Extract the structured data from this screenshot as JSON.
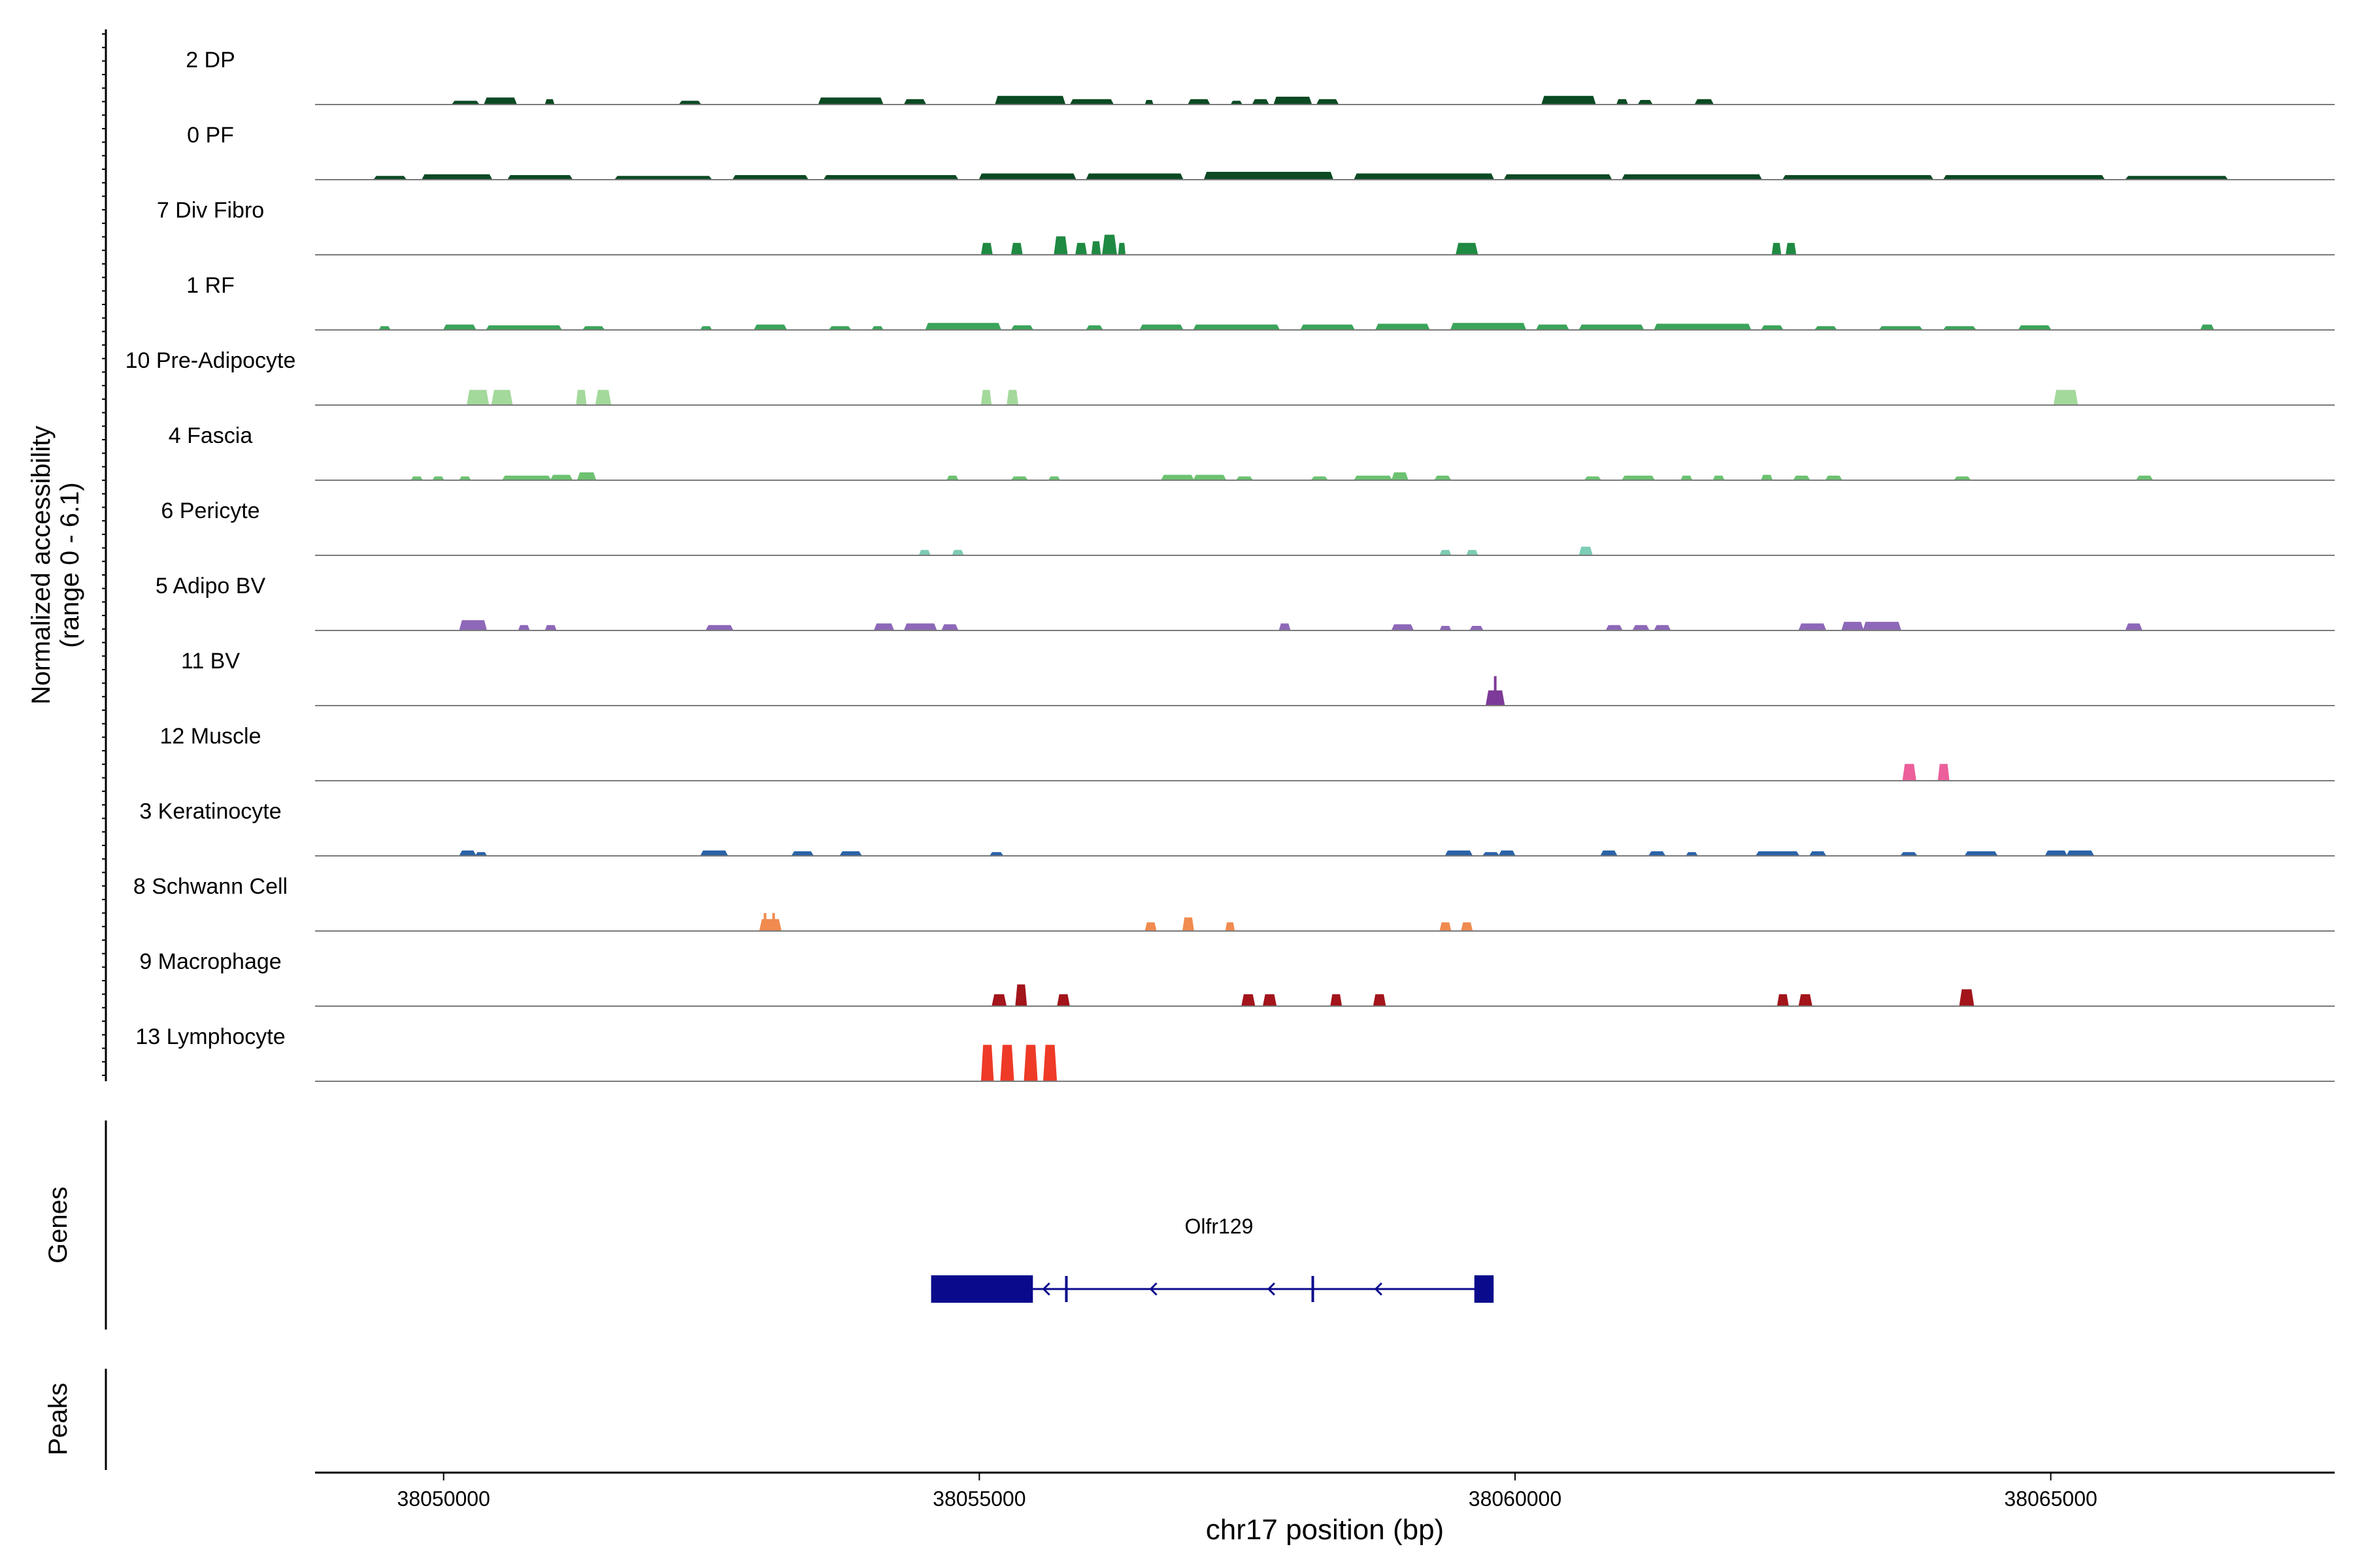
{
  "chart_data": {
    "type": "area",
    "title": "",
    "chrom": "chr17",
    "xlabel": "chr17 position (bp)",
    "ylabel": "Normalized accessibility",
    "ylabel_sub": "(range 0 - 6.1)",
    "xlim": [
      38048800,
      38067650
    ],
    "ylim": [
      0,
      6.1
    ],
    "x_ticks": [
      {
        "value": 38050000,
        "label": "38050000"
      },
      {
        "value": 38055000,
        "label": "38055000"
      },
      {
        "value": 38060000,
        "label": "38060000"
      },
      {
        "value": 38065000,
        "label": "38065000"
      }
    ],
    "tracks": [
      {
        "name": "2 DP",
        "color": "#0b4a23",
        "peaks": [
          [
            38050080,
            38050330,
            0.4
          ],
          [
            38050380,
            38050680,
            0.8
          ],
          [
            38050950,
            38051030,
            0.6
          ],
          [
            38052200,
            38052400,
            0.4
          ],
          [
            38053500,
            38054100,
            0.8
          ],
          [
            38054300,
            38054500,
            0.6
          ],
          [
            38055150,
            38055800,
            1.0
          ],
          [
            38055850,
            38056250,
            0.6
          ],
          [
            38056550,
            38056620,
            0.5
          ],
          [
            38056950,
            38057150,
            0.6
          ],
          [
            38057350,
            38057450,
            0.4
          ],
          [
            38057550,
            38057700,
            0.6
          ],
          [
            38057750,
            38058100,
            0.9
          ],
          [
            38058150,
            38058350,
            0.6
          ],
          [
            38060250,
            38060750,
            1.0
          ],
          [
            38060950,
            38061050,
            0.6
          ],
          [
            38061150,
            38061280,
            0.5
          ],
          [
            38061680,
            38061850,
            0.6
          ]
        ]
      },
      {
        "name": "0 PF",
        "color": "#0b4a23",
        "peaks": [
          [
            38049350,
            38049650,
            0.4
          ],
          [
            38049800,
            38050450,
            0.6
          ],
          [
            38050600,
            38051200,
            0.5
          ],
          [
            38051600,
            38052500,
            0.4
          ],
          [
            38052700,
            38053400,
            0.5
          ],
          [
            38053550,
            38054800,
            0.5
          ],
          [
            38055000,
            38055900,
            0.7
          ],
          [
            38056000,
            38056900,
            0.7
          ],
          [
            38057100,
            38058300,
            0.9
          ],
          [
            38058500,
            38059800,
            0.7
          ],
          [
            38059900,
            38060900,
            0.6
          ],
          [
            38061000,
            38062300,
            0.6
          ],
          [
            38062500,
            38063900,
            0.5
          ],
          [
            38064000,
            38065500,
            0.5
          ],
          [
            38065700,
            38066650,
            0.4
          ]
        ]
      },
      {
        "name": "7 Div Fibro",
        "color": "#1f8a42",
        "peaks": [
          [
            38055020,
            38055120,
            1.4
          ],
          [
            38055300,
            38055400,
            1.4
          ],
          [
            38055700,
            38055820,
            2.2
          ],
          [
            38055900,
            38056000,
            1.4
          ],
          [
            38056050,
            38056130,
            1.6
          ],
          [
            38056150,
            38056280,
            2.4
          ],
          [
            38056300,
            38056360,
            1.4
          ],
          [
            38059450,
            38059650,
            1.4
          ],
          [
            38062400,
            38062480,
            1.4
          ],
          [
            38062530,
            38062620,
            1.4
          ]
        ]
      },
      {
        "name": "1 RF",
        "color": "#3aa45a",
        "peaks": [
          [
            38049400,
            38049500,
            0.4
          ],
          [
            38050000,
            38050300,
            0.6
          ],
          [
            38050400,
            38051100,
            0.5
          ],
          [
            38051300,
            38051500,
            0.4
          ],
          [
            38052400,
            38052500,
            0.4
          ],
          [
            38052900,
            38053200,
            0.6
          ],
          [
            38053600,
            38053800,
            0.4
          ],
          [
            38054000,
            38054100,
            0.4
          ],
          [
            38054500,
            38055200,
            0.8
          ],
          [
            38055300,
            38055500,
            0.5
          ],
          [
            38056000,
            38056150,
            0.5
          ],
          [
            38056500,
            38056900,
            0.6
          ],
          [
            38057000,
            38057800,
            0.6
          ],
          [
            38058000,
            38058500,
            0.6
          ],
          [
            38058700,
            38059200,
            0.7
          ],
          [
            38059400,
            38060100,
            0.8
          ],
          [
            38060200,
            38060500,
            0.6
          ],
          [
            38060600,
            38061200,
            0.6
          ],
          [
            38061300,
            38062200,
            0.7
          ],
          [
            38062300,
            38062500,
            0.5
          ],
          [
            38062800,
            38063000,
            0.4
          ],
          [
            38063400,
            38063800,
            0.4
          ],
          [
            38064000,
            38064300,
            0.4
          ],
          [
            38064700,
            38065000,
            0.5
          ],
          [
            38066400,
            38066520,
            0.6
          ]
        ]
      },
      {
        "name": "10 Pre-Adipocyte",
        "color": "#a3d99b",
        "peaks": [
          [
            38050220,
            38050420,
            1.8
          ],
          [
            38050450,
            38050640,
            1.8
          ],
          [
            38051240,
            38051330,
            1.8
          ],
          [
            38051420,
            38051560,
            1.8
          ],
          [
            38055020,
            38055110,
            1.8
          ],
          [
            38055260,
            38055360,
            1.8
          ],
          [
            38065030,
            38065250,
            1.8
          ]
        ]
      },
      {
        "name": "4 Fascia",
        "color": "#6cc271",
        "peaks": [
          [
            38049700,
            38049800,
            0.4
          ],
          [
            38049900,
            38050000,
            0.4
          ],
          [
            38050150,
            38050250,
            0.4
          ],
          [
            38050550,
            38051000,
            0.5
          ],
          [
            38051000,
            38051200,
            0.6
          ],
          [
            38051250,
            38051420,
            0.9
          ],
          [
            38054700,
            38054800,
            0.5
          ],
          [
            38055300,
            38055450,
            0.4
          ],
          [
            38055650,
            38055750,
            0.4
          ],
          [
            38056700,
            38057000,
            0.6
          ],
          [
            38057000,
            38057300,
            0.6
          ],
          [
            38057400,
            38057550,
            0.4
          ],
          [
            38058100,
            38058250,
            0.4
          ],
          [
            38058500,
            38058850,
            0.5
          ],
          [
            38058850,
            38059000,
            0.9
          ],
          [
            38059250,
            38059400,
            0.5
          ],
          [
            38060650,
            38060800,
            0.4
          ],
          [
            38061000,
            38061300,
            0.5
          ],
          [
            38061550,
            38061650,
            0.5
          ],
          [
            38061850,
            38061950,
            0.5
          ],
          [
            38062300,
            38062400,
            0.6
          ],
          [
            38062600,
            38062750,
            0.5
          ],
          [
            38062900,
            38063050,
            0.5
          ],
          [
            38064100,
            38064250,
            0.4
          ],
          [
            38065800,
            38065950,
            0.5
          ]
        ]
      },
      {
        "name": "6 Pericyte",
        "color": "#7dccb5",
        "peaks": [
          [
            38054440,
            38054540,
            0.6
          ],
          [
            38054750,
            38054850,
            0.6
          ],
          [
            38059300,
            38059400,
            0.6
          ],
          [
            38059550,
            38059650,
            0.6
          ],
          [
            38060600,
            38060720,
            1.0
          ]
        ]
      },
      {
        "name": "5 Adipo BV",
        "color": "#8d68b8",
        "peaks": [
          [
            38050150,
            38050400,
            1.2
          ],
          [
            38050700,
            38050800,
            0.6
          ],
          [
            38050950,
            38051050,
            0.6
          ],
          [
            38052450,
            38052700,
            0.6
          ],
          [
            38054020,
            38054200,
            0.8
          ],
          [
            38054300,
            38054600,
            0.8
          ],
          [
            38054650,
            38054800,
            0.7
          ],
          [
            38057800,
            38057900,
            0.8
          ],
          [
            38058850,
            38059050,
            0.7
          ],
          [
            38059300,
            38059400,
            0.5
          ],
          [
            38059580,
            38059700,
            0.5
          ],
          [
            38060850,
            38061000,
            0.6
          ],
          [
            38061100,
            38061250,
            0.6
          ],
          [
            38061300,
            38061450,
            0.6
          ],
          [
            38062650,
            38062900,
            0.8
          ],
          [
            38063050,
            38063250,
            1.0
          ],
          [
            38063250,
            38063600,
            1.0
          ],
          [
            38065700,
            38065850,
            0.8
          ]
        ]
      },
      {
        "name": "11 BV",
        "color": "#7d3a98",
        "peaks": [
          [
            38059730,
            38059900,
            1.8
          ]
        ],
        "spikes": [
          [
            38059815,
            3.6
          ]
        ]
      },
      {
        "name": "12 Muscle",
        "color": "#ec5f9b",
        "peaks": [
          [
            38063620,
            38063740,
            2.0
          ],
          [
            38063950,
            38064050,
            2.0
          ]
        ]
      },
      {
        "name": "3 Keratinocyte",
        "color": "#2a63a8",
        "peaks": [
          [
            38050150,
            38050300,
            0.6
          ],
          [
            38050300,
            38050400,
            0.4
          ],
          [
            38052400,
            38052650,
            0.6
          ],
          [
            38053250,
            38053450,
            0.5
          ],
          [
            38053700,
            38053900,
            0.5
          ],
          [
            38055100,
            38055220,
            0.4
          ],
          [
            38059350,
            38059600,
            0.6
          ],
          [
            38059700,
            38059850,
            0.4
          ],
          [
            38059850,
            38060000,
            0.6
          ],
          [
            38060800,
            38060950,
            0.6
          ],
          [
            38061250,
            38061400,
            0.5
          ],
          [
            38061600,
            38061700,
            0.4
          ],
          [
            38062250,
            38062650,
            0.5
          ],
          [
            38062750,
            38062900,
            0.5
          ],
          [
            38063600,
            38063750,
            0.4
          ],
          [
            38064200,
            38064500,
            0.5
          ],
          [
            38064950,
            38065150,
            0.6
          ],
          [
            38065150,
            38065400,
            0.6
          ]
        ]
      },
      {
        "name": "8 Schwann Cell",
        "color": "#f08a4f",
        "peaks": [
          [
            38052950,
            38053150,
            1.4
          ],
          [
            38056550,
            38056650,
            1.0
          ],
          [
            38056900,
            38057000,
            1.6
          ],
          [
            38057300,
            38057380,
            1.0
          ],
          [
            38059300,
            38059400,
            1.0
          ],
          [
            38059500,
            38059600,
            1.0
          ]
        ],
        "spikes": [
          [
            38053000,
            2.2
          ],
          [
            38053080,
            2.2
          ]
        ]
      },
      {
        "name": "9 Macrophage",
        "color": "#a3141b",
        "peaks": [
          [
            38055120,
            38055250,
            1.4
          ],
          [
            38055340,
            38055440,
            2.6
          ],
          [
            38055730,
            38055840,
            1.4
          ],
          [
            38057450,
            38057570,
            1.4
          ],
          [
            38057650,
            38057770,
            1.4
          ],
          [
            38058280,
            38058380,
            1.4
          ],
          [
            38058680,
            38058790,
            1.4
          ],
          [
            38062450,
            38062550,
            1.4
          ],
          [
            38062650,
            38062770,
            1.4
          ],
          [
            38064150,
            38064280,
            2.0
          ]
        ]
      },
      {
        "name": "13 Lymphocyte",
        "color": "#ee3a27",
        "peaks": [
          [
            38055020,
            38055130,
            4.4
          ],
          [
            38055200,
            38055320,
            4.4
          ],
          [
            38055420,
            38055540,
            4.4
          ],
          [
            38055600,
            38055720,
            4.4
          ]
        ]
      }
    ],
    "genes_label": "Genes",
    "peaks_label": "Peaks",
    "gene": {
      "name": "Olfr129",
      "strand": "-",
      "start": 38054550,
      "end": 38059800,
      "exons": [
        [
          38054550,
          38055500
        ],
        [
          38055800,
          38055820
        ],
        [
          38058100,
          38058120
        ],
        [
          38059620,
          38059800
        ]
      ],
      "arrows": [
        38055600,
        38056600,
        38057700,
        38058700
      ],
      "color": "#0a0a8c"
    }
  }
}
